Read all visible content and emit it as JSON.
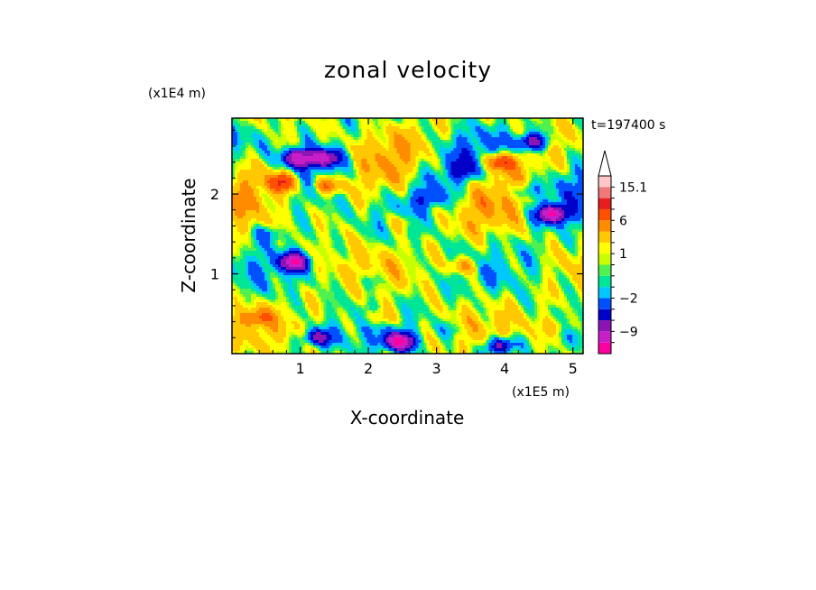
{
  "chart_data": {
    "type": "heatmap",
    "title": "zonal velocity",
    "xlabel": "X-coordinate",
    "ylabel": "Z-coordinate",
    "x_unit": "(x1E5 m)",
    "y_unit": "(x1E4 m)",
    "time_label": "t=197400 s",
    "xlim": [
      0,
      5.15
    ],
    "ylim": [
      0,
      2.95
    ],
    "x_ticks": [
      1,
      2,
      3,
      4,
      5
    ],
    "x_tick_labels": [
      "1",
      "2",
      "3",
      "4",
      "5"
    ],
    "y_ticks": [
      1,
      2
    ],
    "y_tick_labels": [
      "1",
      "2"
    ],
    "colorbar": {
      "levels": [
        -15,
        -12,
        -9,
        -6,
        -4,
        -2,
        -1,
        0,
        0.5,
        1,
        2,
        4,
        6,
        9,
        12,
        15.1
      ],
      "colors": [
        "#ff00a0",
        "#c81ec8",
        "#8c14b4",
        "#0000c8",
        "#0050ff",
        "#00c8ff",
        "#00e696",
        "#50f050",
        "#c8ff00",
        "#ffff00",
        "#ffc800",
        "#ff8c00",
        "#ff5000",
        "#e61e1e",
        "#f07878",
        "#ffc8c8"
      ],
      "extend_top": true,
      "labels": [
        {
          "value": 15.1,
          "text": "15.1"
        },
        {
          "value": 6,
          "text": "6"
        },
        {
          "value": 1,
          "text": "1"
        },
        {
          "value": -2,
          "text": "−2"
        },
        {
          "value": -9,
          "text": "−9"
        }
      ]
    },
    "features": [
      {
        "x": 0.95,
        "z": 2.45,
        "value": -11
      },
      {
        "x": 0.75,
        "z": 2.15,
        "value": 8
      },
      {
        "x": 1.35,
        "z": 2.45,
        "value": -10
      },
      {
        "x": 1.4,
        "z": 2.1,
        "value": 7
      },
      {
        "x": 0.9,
        "z": 1.15,
        "value": -11
      },
      {
        "x": 0.55,
        "z": 1.5,
        "value": -3
      },
      {
        "x": 4.7,
        "z": 1.75,
        "value": -12
      },
      {
        "x": 4.3,
        "z": 2.05,
        "value": -4
      },
      {
        "x": 4.4,
        "z": 2.65,
        "value": -9
      },
      {
        "x": 3.95,
        "z": 2.4,
        "value": 9
      },
      {
        "x": 3.4,
        "z": 2.3,
        "value": -3
      },
      {
        "x": 3.4,
        "z": 1.1,
        "value": 5
      },
      {
        "x": 2.5,
        "z": 1.65,
        "value": 3
      },
      {
        "x": 0.35,
        "z": 0.45,
        "value": 5
      },
      {
        "x": 2.15,
        "z": 0.45,
        "value": 4
      },
      {
        "x": 2.45,
        "z": 0.15,
        "value": -12
      },
      {
        "x": 1.25,
        "z": 0.2,
        "value": -8
      },
      {
        "x": 3.95,
        "z": 0.1,
        "value": -9
      },
      {
        "x": 2.0,
        "z": 0.9,
        "value": -2
      },
      {
        "x": 3.2,
        "z": 0.3,
        "value": -2
      },
      {
        "x": 4.8,
        "z": 0.35,
        "value": 3
      },
      {
        "x": 2.9,
        "z": 1.95,
        "value": -3
      }
    ]
  }
}
